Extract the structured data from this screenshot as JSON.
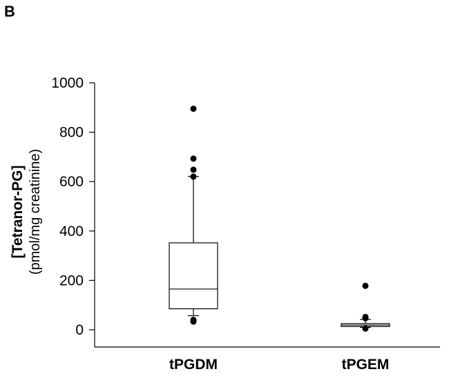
{
  "panel_label": "B",
  "chart_data": {
    "type": "box",
    "ylabel": "[Tetranor-PG]",
    "ylabel_unit": "(pmol/mg creatinine)",
    "ylim": [
      0,
      1000
    ],
    "yticks": [
      0,
      200,
      400,
      600,
      800,
      1000
    ],
    "categories": [
      "tPGDM",
      "tPGEM"
    ],
    "boxes": [
      {
        "category": "tPGDM",
        "whisker_low": 57,
        "q1": 85,
        "median": 165,
        "q3": 352,
        "whisker_high": 621,
        "outliers": [
          33,
          40,
          620,
          648,
          693,
          895
        ]
      },
      {
        "category": "tPGEM",
        "whisker_low": 10,
        "q1": 13,
        "median": 19,
        "q3": 25,
        "whisker_high": 42,
        "outliers": [
          5,
          47,
          52,
          178
        ]
      }
    ],
    "grid": false
  }
}
